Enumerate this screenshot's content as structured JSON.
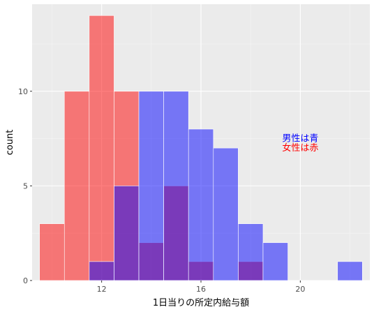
{
  "chart_data": {
    "type": "bar",
    "subtype": "overlaid-histogram",
    "title": "",
    "xlabel": "1日当りの所定内給与額",
    "ylabel": "count",
    "xlim": [
      9.2,
      22.8
    ],
    "ylim": [
      0,
      14.6
    ],
    "x_ticks": [
      12,
      16,
      20
    ],
    "y_ticks": [
      0,
      5,
      10
    ],
    "bin_width": 1,
    "grid": true,
    "legend": "none",
    "panel_background": "#ebebeb",
    "series": [
      {
        "group": "female",
        "color": "#ff0000",
        "bins": [
          {
            "x0": 9.5,
            "x1": 10.5,
            "count": 3
          },
          {
            "x0": 10.5,
            "x1": 11.5,
            "count": 10
          },
          {
            "x0": 11.5,
            "x1": 12.5,
            "count": 14
          },
          {
            "x0": 12.5,
            "x1": 13.5,
            "count": 10
          },
          {
            "x0": 13.5,
            "x1": 14.5,
            "count": 2
          },
          {
            "x0": 14.5,
            "x1": 15.5,
            "count": 5
          },
          {
            "x0": 15.5,
            "x1": 16.5,
            "count": 1
          },
          {
            "x0": 17.5,
            "x1": 18.5,
            "count": 1
          }
        ]
      },
      {
        "group": "male",
        "color": "#0000ff",
        "bins": [
          {
            "x0": 11.5,
            "x1": 12.5,
            "count": 1
          },
          {
            "x0": 12.5,
            "x1": 13.5,
            "count": 5
          },
          {
            "x0": 13.5,
            "x1": 14.5,
            "count": 10
          },
          {
            "x0": 14.5,
            "x1": 15.5,
            "count": 10
          },
          {
            "x0": 15.5,
            "x1": 16.5,
            "count": 8
          },
          {
            "x0": 16.5,
            "x1": 17.5,
            "count": 7
          },
          {
            "x0": 17.5,
            "x1": 18.5,
            "count": 3
          },
          {
            "x0": 18.5,
            "x1": 19.5,
            "count": 2
          },
          {
            "x0": 21.5,
            "x1": 22.5,
            "count": 1
          }
        ]
      }
    ],
    "annotations": [
      {
        "text": "男性は青",
        "x": 20,
        "y": 7.5,
        "color": "#0000ff"
      },
      {
        "text": "女性は赤",
        "x": 20,
        "y": 7.0,
        "color": "#ff0000"
      }
    ]
  }
}
